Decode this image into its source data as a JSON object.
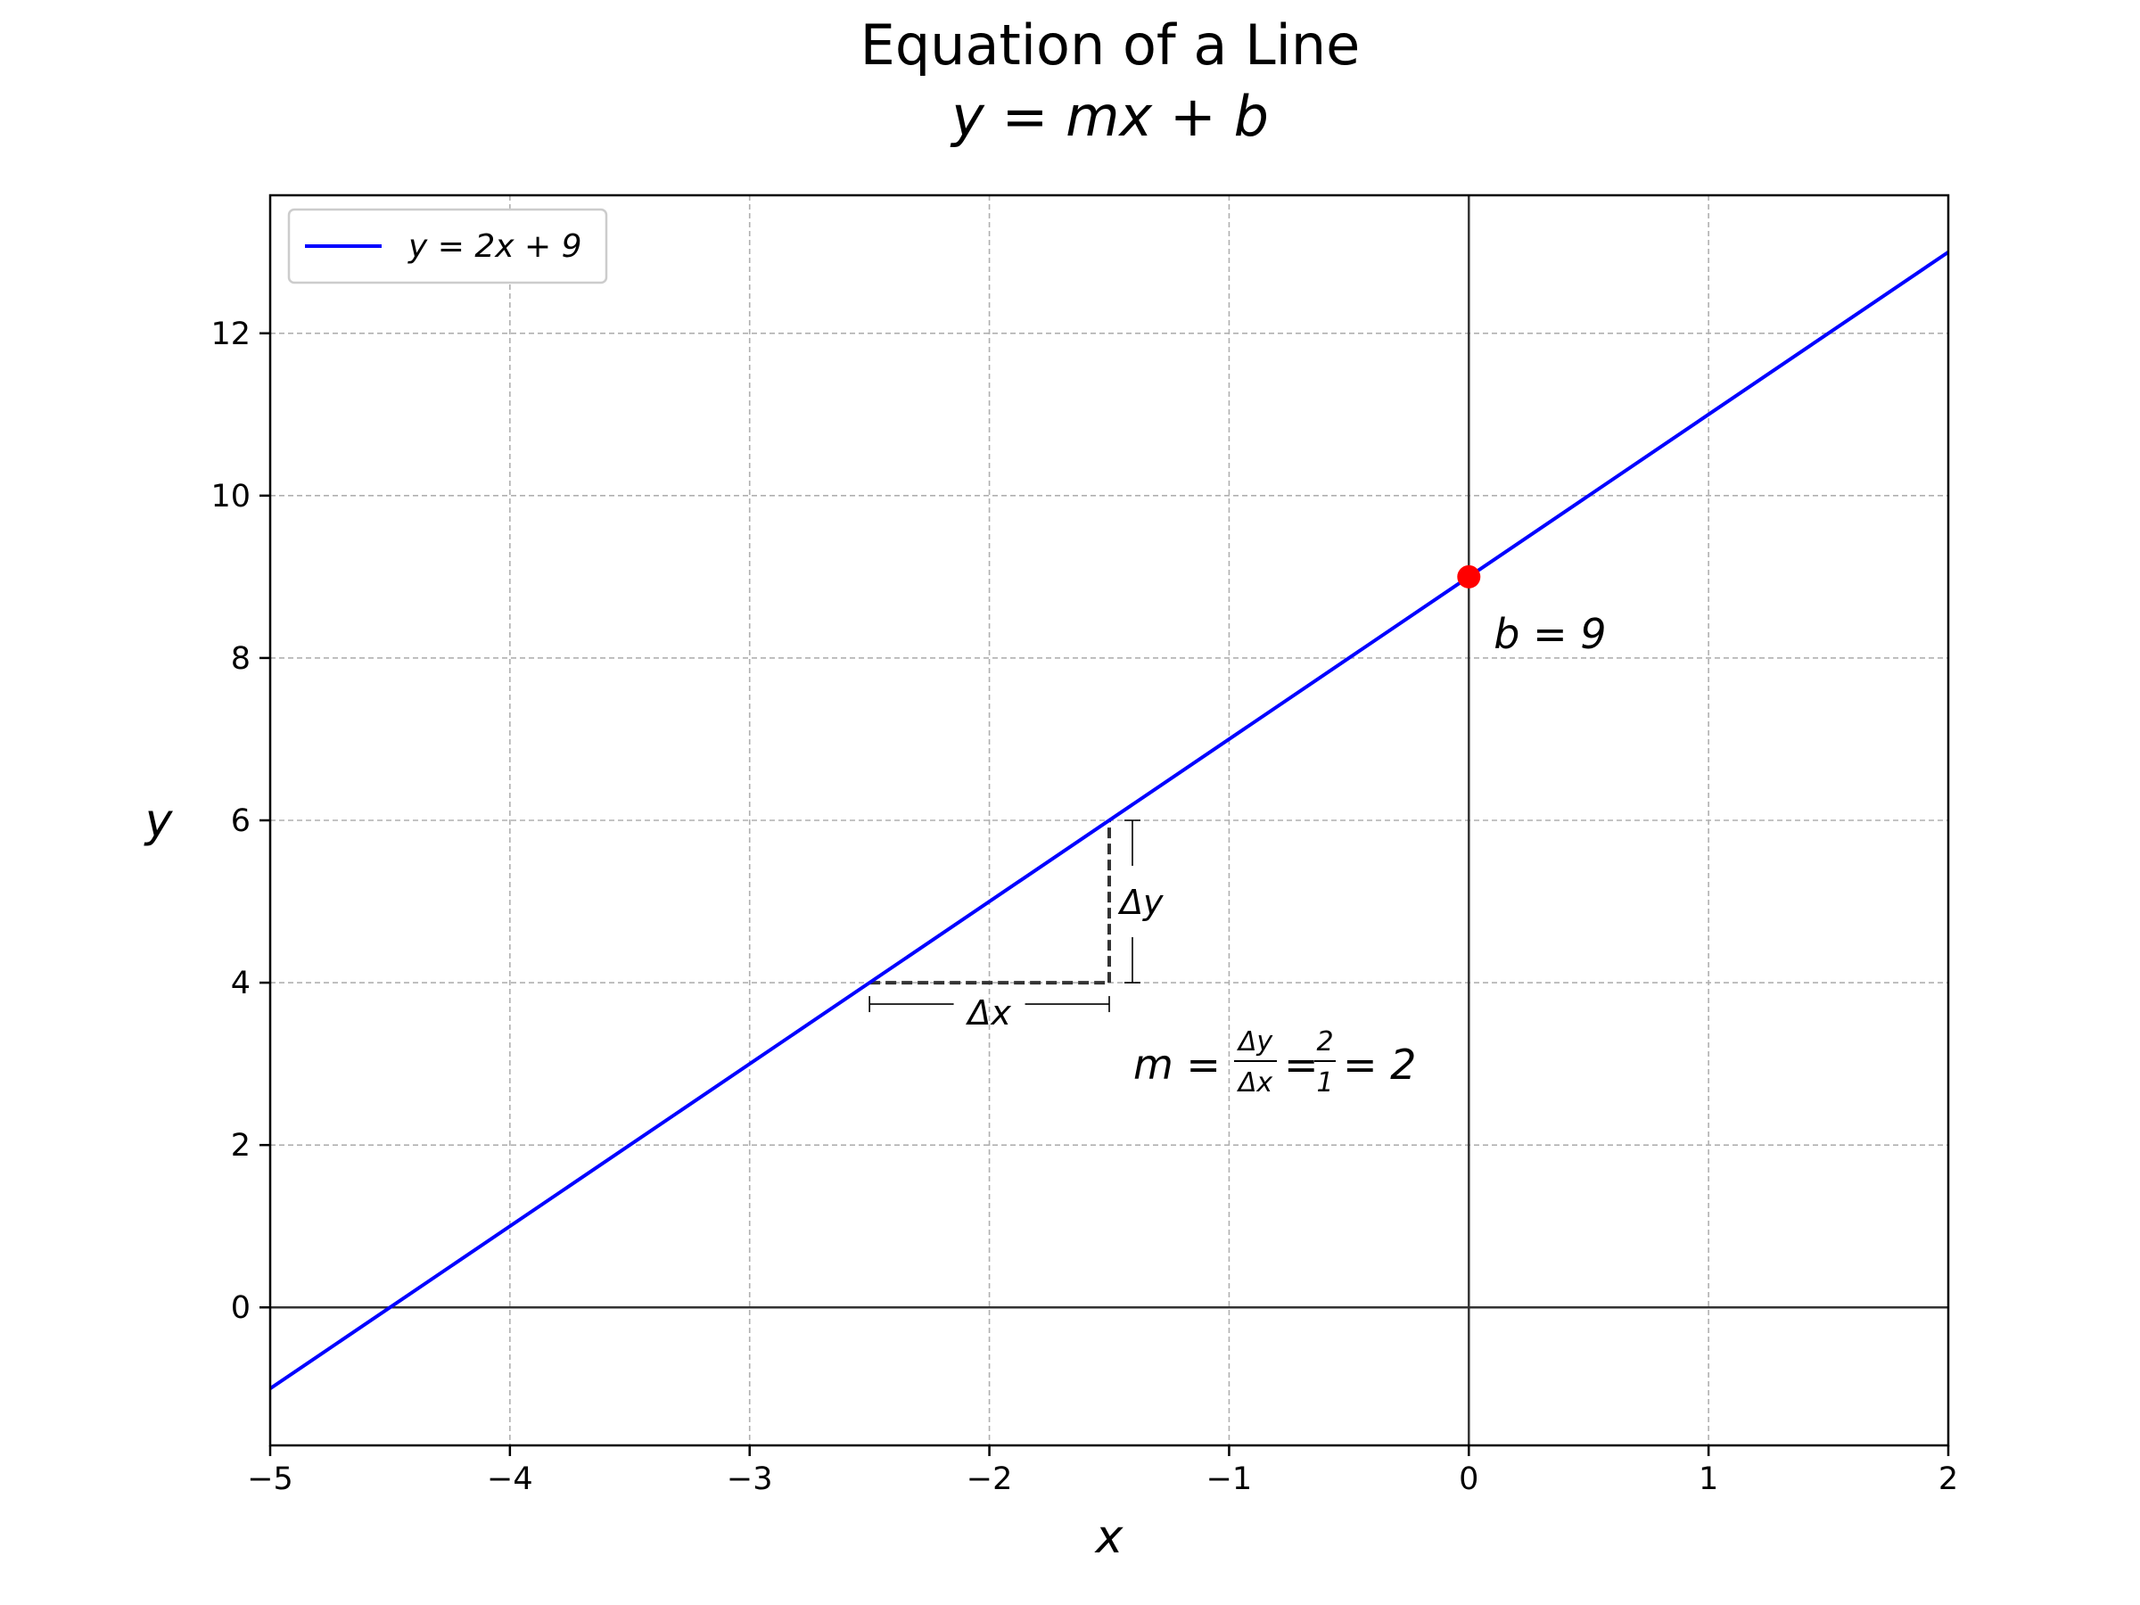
{
  "chart_data": {
    "type": "line",
    "title": "Equation of a Line",
    "subtitle": "y = mx + b",
    "xlabel": "x",
    "ylabel": "y",
    "xlim": [
      -5,
      2
    ],
    "ylim": [
      -1.7,
      13.7
    ],
    "grid": true,
    "legend_position": "top-left",
    "x_ticks": [
      -5,
      -4,
      -3,
      -2,
      -1,
      0,
      1,
      2
    ],
    "y_ticks": [
      0,
      2,
      4,
      6,
      8,
      10,
      12
    ],
    "x_tick_labels": [
      "−5",
      "−4",
      "−3",
      "−2",
      "−1",
      "0",
      "1",
      "2"
    ],
    "y_tick_labels": [
      "0",
      "2",
      "4",
      "6",
      "8",
      "10",
      "12"
    ],
    "series": [
      {
        "name": "y = 2x + 9",
        "color": "#0000ff",
        "x": [
          -5,
          2
        ],
        "y": [
          -1,
          13
        ]
      }
    ],
    "intercept_point": {
      "x": 0,
      "y": 9,
      "color": "#ff0000",
      "label": "b = 9"
    },
    "slope_triangle": {
      "x0": -2.5,
      "y0": 4,
      "x1": -1.5,
      "y1": 6,
      "dx_label": "Δx",
      "dy_label": "Δy"
    },
    "slope_annotation": {
      "lhs": "m =",
      "num1": "Δy",
      "den1": "Δx",
      "eq": "=",
      "num2": "2",
      "den2": "1",
      "result": "= 2"
    }
  }
}
